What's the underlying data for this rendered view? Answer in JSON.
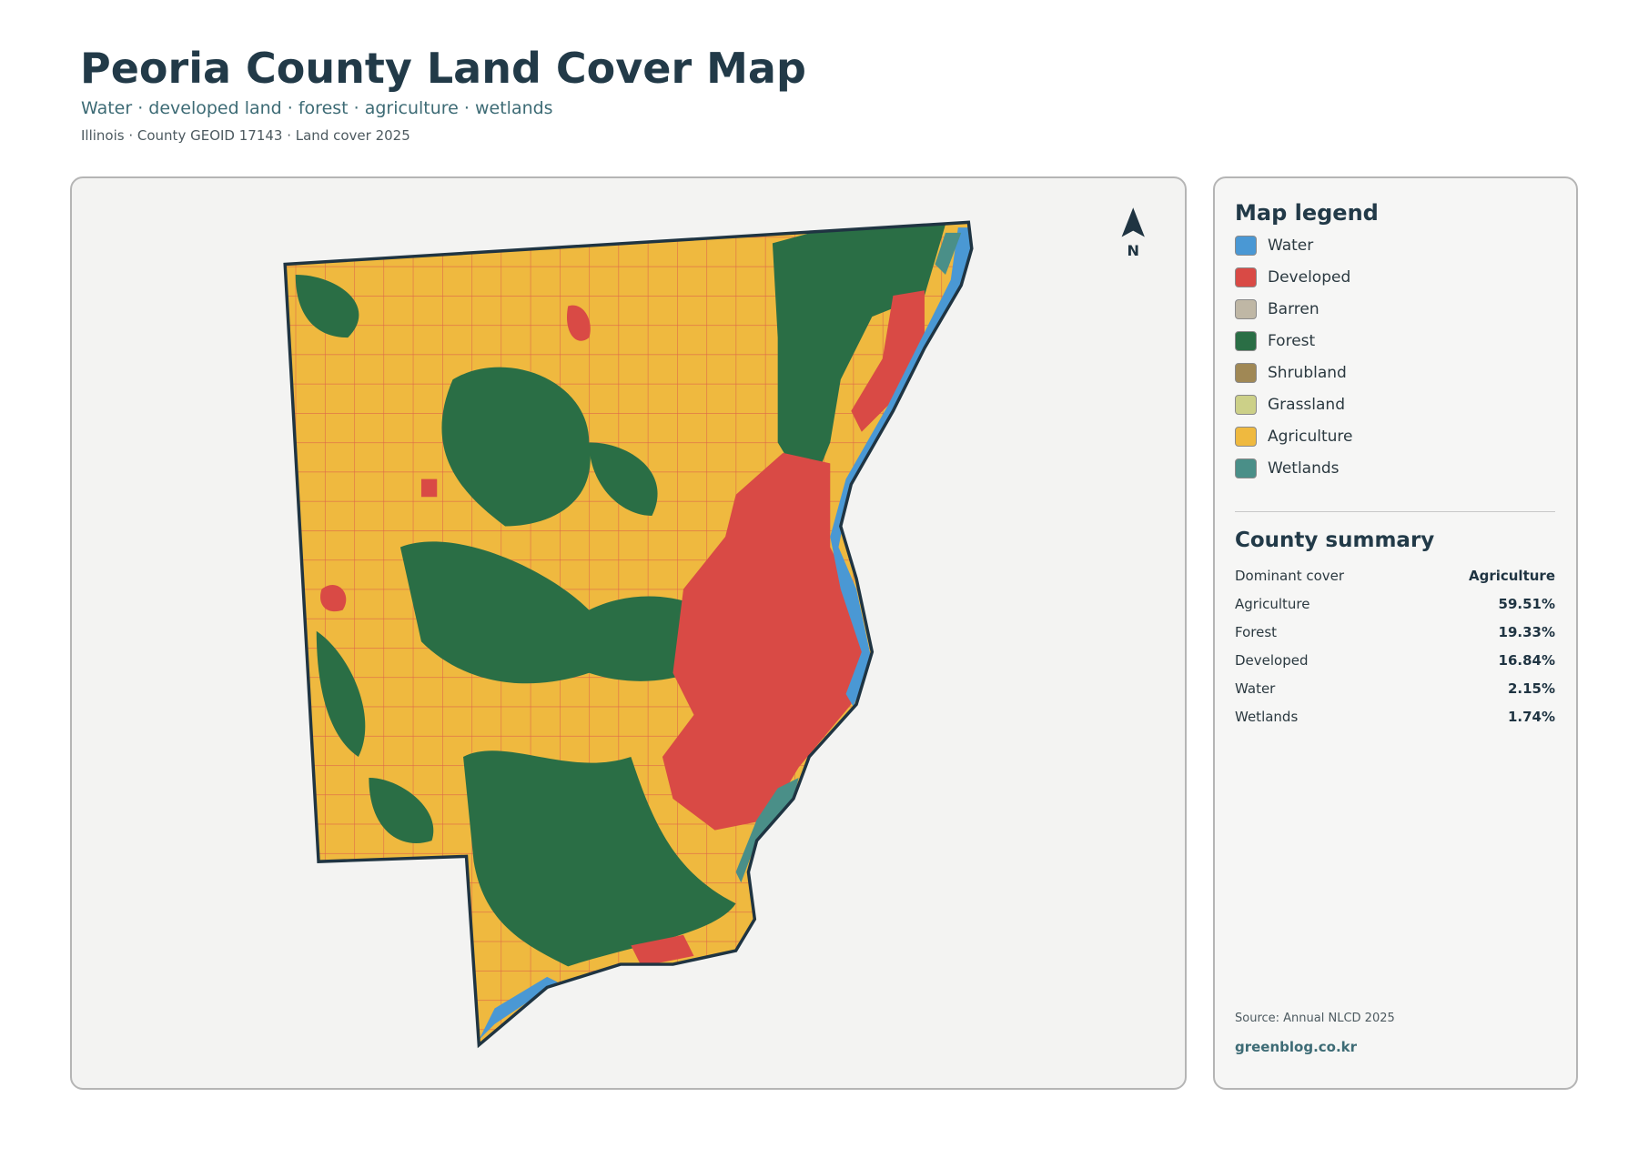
{
  "header": {
    "title": "Peoria County Land Cover Map",
    "subtitle": "Water · developed land · forest · agriculture · wetlands",
    "meta": "Illinois · County GEOID 17143 · Land cover 2025"
  },
  "map": {
    "north_label": "N"
  },
  "legend": {
    "title": "Map legend",
    "items": [
      {
        "label": "Water",
        "color": "#4a98d4"
      },
      {
        "label": "Developed",
        "color": "#d94a45"
      },
      {
        "label": "Barren",
        "color": "#bfb7a5"
      },
      {
        "label": "Forest",
        "color": "#2a6e45"
      },
      {
        "label": "Shrubland",
        "color": "#a08855"
      },
      {
        "label": "Grassland",
        "color": "#ccd088"
      },
      {
        "label": "Agriculture",
        "color": "#efb93f"
      },
      {
        "label": "Wetlands",
        "color": "#4a8f88"
      }
    ]
  },
  "summary": {
    "title": "County summary",
    "rows": [
      [
        "Dominant cover",
        "Agriculture"
      ],
      [
        "Agriculture",
        "59.51%"
      ],
      [
        "Forest",
        "19.33%"
      ],
      [
        "Developed",
        "16.84%"
      ],
      [
        "Water",
        "2.15%"
      ],
      [
        "Wetlands",
        "1.74%"
      ]
    ]
  },
  "footer": {
    "source": "Source: Annual NLCD 2025",
    "site": "greenblog.co.kr"
  }
}
